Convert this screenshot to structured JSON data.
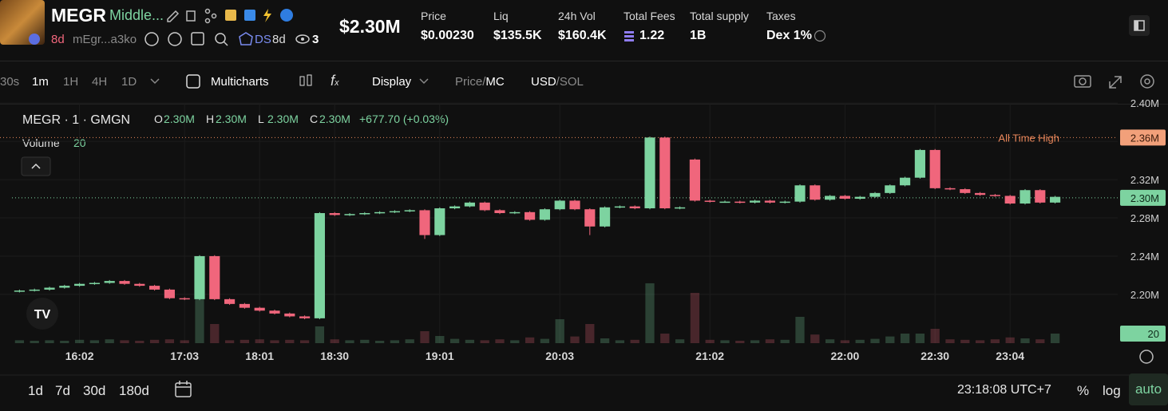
{
  "header": {
    "symbol": "MEGR",
    "name": "Middle...",
    "age": "8d",
    "address": "mEgr...a3ko",
    "ds": "DS",
    "ds_age": "8d",
    "watchers": "3",
    "market_cap": "$2.30M",
    "stats": [
      {
        "label": "Price",
        "value": "$0.00230"
      },
      {
        "label": "Liq",
        "value": "$135.5K"
      },
      {
        "label": "24h Vol",
        "value": "$160.4K"
      },
      {
        "label": "Total Fees",
        "value": "1.22"
      },
      {
        "label": "Total supply",
        "value": "1B"
      },
      {
        "label": "Taxes",
        "value": "Dex 1%"
      }
    ]
  },
  "toolbar": {
    "intervals": [
      "30s",
      "1m",
      "1H",
      "4H",
      "1D"
    ],
    "multicharts": "Multicharts",
    "display": "Display",
    "price": "Price",
    "mc": "MC",
    "usd": "USD",
    "sol": "SOL",
    "sep": "/"
  },
  "chart_data": {
    "type": "candlestick",
    "title": "MEGR · 1 · GMGN",
    "legend_ohlc": [
      {
        "key": "O",
        "value": "2.30M"
      },
      {
        "key": "H",
        "value": "2.30M"
      },
      {
        "key": "L",
        "value": "2.30M"
      },
      {
        "key": "C",
        "value": "2.30M"
      }
    ],
    "change": "+677.70 (+0.03%)",
    "volume_label": "Volume",
    "volume_value": 20,
    "up_color": "#7dd3a0",
    "down_color": "#f0667c",
    "open": [
      2.203,
      2.204,
      2.205,
      2.207,
      2.209,
      2.211,
      2.212,
      2.214,
      2.211,
      2.209,
      2.205,
      2.196,
      2.195,
      2.24,
      2.195,
      2.19,
      2.186,
      2.183,
      2.18,
      2.177,
      2.175,
      2.285,
      2.283,
      2.284,
      2.285,
      2.286,
      2.287,
      2.288,
      2.262,
      2.29,
      2.292,
      2.296,
      2.288,
      2.285,
      2.286,
      2.278,
      2.289,
      2.298,
      2.289,
      2.271,
      2.291,
      2.292,
      2.29,
      2.364,
      2.29,
      2.341,
      2.298,
      2.297,
      2.297,
      2.296,
      2.298,
      2.296,
      2.297,
      2.314,
      2.299,
      2.303,
      2.3,
      2.302,
      2.306,
      2.314,
      2.322,
      2.351,
      2.311,
      2.31,
      2.306,
      2.304,
      2.303,
      2.295,
      2.309,
      2.296
    ],
    "close": [
      2.204,
      2.205,
      2.207,
      2.209,
      2.211,
      2.212,
      2.214,
      2.211,
      2.209,
      2.205,
      2.196,
      2.195,
      2.24,
      2.195,
      2.19,
      2.186,
      2.183,
      2.18,
      2.177,
      2.175,
      2.285,
      2.283,
      2.284,
      2.285,
      2.286,
      2.287,
      2.288,
      2.262,
      2.29,
      2.292,
      2.296,
      2.288,
      2.285,
      2.286,
      2.278,
      2.289,
      2.298,
      2.289,
      2.271,
      2.291,
      2.292,
      2.29,
      2.364,
      2.29,
      2.291,
      2.298,
      2.297,
      2.297,
      2.296,
      2.298,
      2.296,
      2.297,
      2.314,
      2.299,
      2.303,
      2.3,
      2.302,
      2.306,
      2.314,
      2.322,
      2.351,
      2.311,
      2.31,
      2.306,
      2.304,
      2.303,
      2.295,
      2.309,
      2.296,
      2.302
    ],
    "high": [
      2.205,
      2.206,
      2.208,
      2.21,
      2.212,
      2.213,
      2.215,
      2.215,
      2.212,
      2.21,
      2.206,
      2.197,
      2.241,
      2.241,
      2.196,
      2.191,
      2.187,
      2.184,
      2.181,
      2.178,
      2.286,
      2.286,
      2.285,
      2.286,
      2.287,
      2.288,
      2.289,
      2.289,
      2.291,
      2.293,
      2.297,
      2.297,
      2.289,
      2.287,
      2.287,
      2.29,
      2.299,
      2.299,
      2.29,
      2.292,
      2.293,
      2.293,
      2.365,
      2.365,
      2.292,
      2.342,
      2.299,
      2.298,
      2.298,
      2.299,
      2.299,
      2.298,
      2.315,
      2.315,
      2.304,
      2.304,
      2.303,
      2.307,
      2.315,
      2.323,
      2.352,
      2.352,
      2.312,
      2.311,
      2.307,
      2.305,
      2.304,
      2.31,
      2.31,
      2.303
    ],
    "low": [
      2.202,
      2.203,
      2.204,
      2.206,
      2.208,
      2.21,
      2.211,
      2.21,
      2.208,
      2.204,
      2.195,
      2.194,
      2.194,
      2.194,
      2.189,
      2.185,
      2.182,
      2.179,
      2.176,
      2.174,
      2.174,
      2.282,
      2.282,
      2.283,
      2.284,
      2.285,
      2.286,
      2.258,
      2.261,
      2.289,
      2.291,
      2.287,
      2.284,
      2.284,
      2.277,
      2.277,
      2.288,
      2.288,
      2.262,
      2.27,
      2.29,
      2.289,
      2.289,
      2.289,
      2.289,
      2.297,
      2.296,
      2.296,
      2.295,
      2.295,
      2.295,
      2.295,
      2.296,
      2.298,
      2.298,
      2.299,
      2.299,
      2.301,
      2.305,
      2.313,
      2.321,
      2.31,
      2.309,
      2.305,
      2.303,
      2.302,
      2.294,
      2.294,
      2.295,
      2.295
    ],
    "volume": [
      6,
      5,
      6,
      5,
      7,
      6,
      8,
      6,
      5,
      7,
      8,
      6,
      130,
      40,
      6,
      7,
      8,
      6,
      7,
      6,
      35,
      8,
      6,
      7,
      5,
      6,
      8,
      25,
      15,
      9,
      7,
      6,
      8,
      6,
      12,
      9,
      50,
      14,
      40,
      10,
      6,
      7,
      125,
      20,
      8,
      105,
      7,
      6,
      5,
      6,
      8,
      7,
      55,
      18,
      8,
      6,
      7,
      9,
      14,
      20,
      20,
      30,
      8,
      7,
      6,
      8,
      12,
      10,
      8,
      20
    ],
    "volume_lim": [
      0,
      513
    ],
    "ylim": [
      2.149,
      2.406
    ],
    "yticks": [
      {
        "value": 2.4,
        "label": "2.40M"
      },
      {
        "value": 2.36,
        "label": "2.36M"
      },
      {
        "value": 2.32,
        "label": "2.32M"
      },
      {
        "value": 2.28,
        "label": "2.28M"
      },
      {
        "value": 2.24,
        "label": "2.24M"
      },
      {
        "value": 2.2,
        "label": "2.20M"
      }
    ],
    "xticks": [
      {
        "value": 4,
        "label": "16:02"
      },
      {
        "value": 11,
        "label": "17:03"
      },
      {
        "value": 16,
        "label": "18:01"
      },
      {
        "value": 21,
        "label": "18:30"
      },
      {
        "value": 28,
        "label": "19:01"
      },
      {
        "value": 36,
        "label": "20:03"
      },
      {
        "value": 46,
        "label": "21:02"
      },
      {
        "value": 55,
        "label": "22:00"
      },
      {
        "value": 61,
        "label": "22:30"
      },
      {
        "value": 66,
        "label": "23:04"
      }
    ],
    "ath": {
      "label": "All Time High",
      "value": 2.364,
      "value_label": "2.36M"
    },
    "last_price": {
      "value": 2.301,
      "label": "2.30M"
    }
  },
  "footer": {
    "ranges": [
      "1d",
      "7d",
      "30d",
      "180d"
    ],
    "time": "23:18:08 UTC+7",
    "percent": "%",
    "log": "log",
    "auto": "auto"
  }
}
